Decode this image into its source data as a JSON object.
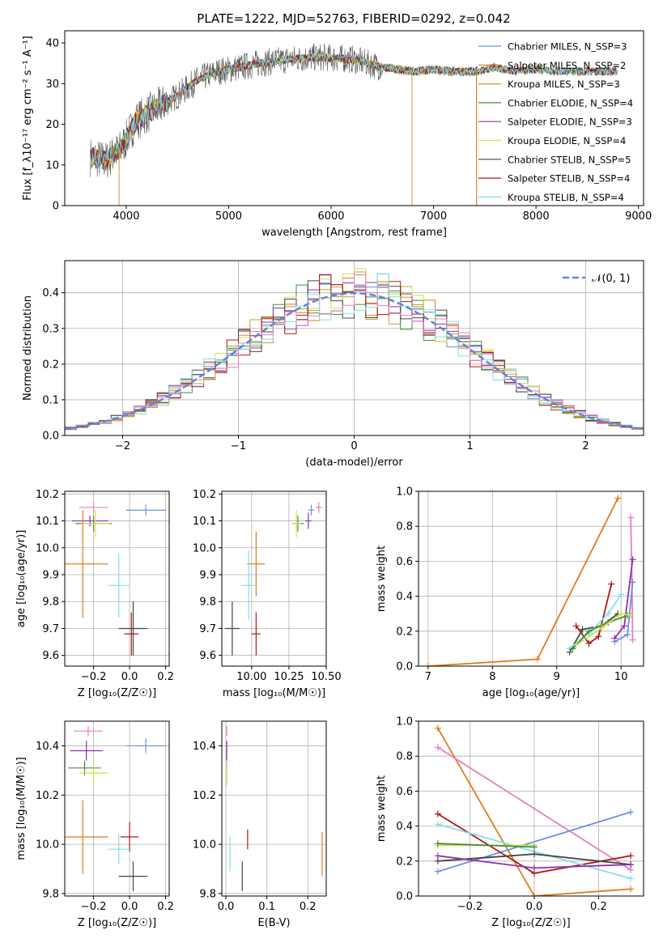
{
  "chart_data": [
    {
      "type": "line",
      "title": "PLATE=1222, MJD=52763, FIBERID=0292, z=0.042",
      "xlabel": "wavelength [Angstrom, rest frame]",
      "ylabel": "Flux [f_λ10⁻¹⁷ erg cm⁻² s⁻¹ A⁻¹]",
      "xlim": [
        3400,
        9050
      ],
      "ylim": [
        0,
        43
      ],
      "xticks": [
        "4000",
        "5000",
        "6000",
        "7000",
        "8000",
        "9000"
      ],
      "yticks": [
        "0",
        "10",
        "20",
        "30",
        "40"
      ],
      "legend_position": "upper right",
      "spectrum_trend": {
        "wavelength": [
          3650,
          3800,
          3950,
          4100,
          4300,
          4500,
          4700,
          4900,
          5100,
          5300,
          5600,
          5900,
          6200,
          6500,
          6800,
          7000,
          7200,
          7400,
          7600,
          7800,
          8000,
          8200,
          8400,
          8600,
          8800
        ],
        "flux": [
          12,
          11,
          14,
          21,
          24,
          27,
          31,
          33,
          34,
          35,
          36,
          36.5,
          36,
          34,
          33,
          33.5,
          33,
          33,
          34,
          33,
          33.5,
          33,
          33,
          33,
          33
        ]
      },
      "series": [
        {
          "name": "Chabrier MILES, N_SSP=3",
          "color": "#6b8fe0"
        },
        {
          "name": "Salpeter MILES, N_SSP=2",
          "color": "#e07b1a"
        },
        {
          "name": "Kroupa MILES, N_SSP=3",
          "color": "#c89b2e"
        },
        {
          "name": "Chabrier ELODIE, N_SSP=4",
          "color": "#3f8f3f"
        },
        {
          "name": "Salpeter ELODIE, N_SSP=3",
          "color": "#8f2fb0"
        },
        {
          "name": "Kroupa ELODIE, N_SSP=4",
          "color": "#d4e04a"
        },
        {
          "name": "Chabrier STELIB, N_SSP=5",
          "color": "#454545"
        },
        {
          "name": "Salpeter STELIB, N_SSP=4",
          "color": "#b01818"
        },
        {
          "name": "Kroupa STELIB, N_SSP=4",
          "color": "#7fe0e8"
        }
      ]
    },
    {
      "type": "histogram",
      "xlabel": "(data-model)/error",
      "ylabel": "Normed distribution",
      "xlim": [
        -2.5,
        2.5
      ],
      "ylim": [
        0,
        0.49
      ],
      "xticks": [
        "−2",
        "−1",
        "0",
        "1",
        "2"
      ],
      "yticks": [
        "0.0",
        "0.1",
        "0.2",
        "0.3",
        "0.4"
      ],
      "legend_label": "𝒩(0, 1)",
      "bin_edges_step": 0.1,
      "grid": true
    },
    {
      "type": "scatter",
      "xlabel": "Z [log₁₀(Z/Z☉)]",
      "ylabel": "age  [log₁₀(age/yr)]",
      "xlim": [
        -0.36,
        0.22
      ],
      "ylim": [
        9.56,
        10.21
      ],
      "xticks": [
        "−0.2",
        "0.0",
        "0.2"
      ],
      "yticks": [
        "9.6",
        "9.7",
        "9.8",
        "9.9",
        "10.0",
        "10.1",
        "10.2"
      ],
      "points": [
        {
          "x": 0.09,
          "y": 10.14,
          "xerr": 0.11,
          "yerr": 0.02,
          "color": "#6b8fe0"
        },
        {
          "x": -0.2,
          "y": 10.15,
          "xerr": 0.08,
          "yerr": 0.02,
          "color": "#e57fc0"
        },
        {
          "x": -0.22,
          "y": 10.1,
          "xerr": 0.1,
          "yerr": 0.02,
          "color": "#8f2fb0"
        },
        {
          "x": -0.2,
          "y": 10.09,
          "xerr": 0.1,
          "yerr": 0.03,
          "color": "#3f8f3f"
        },
        {
          "x": -0.19,
          "y": 10.09,
          "xerr": 0.08,
          "yerr": 0.05,
          "color": "#d4e04a"
        },
        {
          "x": -0.26,
          "y": 9.94,
          "xerr": 0.14,
          "yerr": 0.2,
          "color": "#e07b1a"
        },
        {
          "x": -0.06,
          "y": 9.86,
          "xerr": 0.06,
          "yerr": 0.12,
          "color": "#7fe0e8"
        },
        {
          "x": 0.02,
          "y": 9.7,
          "xerr": 0.08,
          "yerr": 0.1,
          "color": "#454545"
        },
        {
          "x": 0.01,
          "y": 9.68,
          "xerr": 0.04,
          "yerr": 0.08,
          "color": "#b01818"
        }
      ]
    },
    {
      "type": "scatter",
      "xlabel": "mass [log₁₀(M/M☉)]",
      "xlim": [
        9.8,
        10.5
      ],
      "ylim": [
        9.56,
        10.21
      ],
      "xticks": [
        "10.00",
        "10.25",
        "10.50"
      ],
      "yticks": [
        "9.6",
        "9.7",
        "9.8",
        "9.9",
        "10.0",
        "10.1",
        "10.2"
      ],
      "points": [
        {
          "x": 10.4,
          "y": 10.14,
          "xerr": 0.02,
          "yerr": 0.02,
          "color": "#6b8fe0"
        },
        {
          "x": 10.45,
          "y": 10.15,
          "xerr": 0.02,
          "yerr": 0.02,
          "color": "#e57fc0"
        },
        {
          "x": 10.38,
          "y": 10.1,
          "xerr": 0.02,
          "yerr": 0.03,
          "color": "#8f2fb0"
        },
        {
          "x": 10.31,
          "y": 10.09,
          "xerr": 0.04,
          "yerr": 0.03,
          "color": "#3f8f3f"
        },
        {
          "x": 10.3,
          "y": 10.09,
          "xerr": 0.03,
          "yerr": 0.05,
          "color": "#d4e04a"
        },
        {
          "x": 10.03,
          "y": 9.94,
          "xerr": 0.06,
          "yerr": 0.12,
          "color": "#e07b1a"
        },
        {
          "x": 9.98,
          "y": 9.86,
          "xerr": 0.05,
          "yerr": 0.13,
          "color": "#7fe0e8"
        },
        {
          "x": 9.87,
          "y": 9.7,
          "xerr": 0.05,
          "yerr": 0.1,
          "color": "#454545"
        },
        {
          "x": 10.03,
          "y": 9.68,
          "xerr": 0.03,
          "yerr": 0.08,
          "color": "#b01818"
        }
      ]
    },
    {
      "type": "line",
      "xlabel": "age  [log₁₀(age/yr)]",
      "ylabel": "mass weight",
      "xlim": [
        6.85,
        10.35
      ],
      "ylim": [
        0,
        1.0
      ],
      "xticks": [
        "7",
        "8",
        "9",
        "10"
      ],
      "yticks": [
        "0.0",
        "0.2",
        "0.4",
        "0.6",
        "0.8",
        "1.0"
      ],
      "series": [
        {
          "color": "#e07b1a",
          "x": [
            7.0,
            8.7,
            9.95
          ],
          "y": [
            0.0,
            0.04,
            0.96
          ]
        },
        {
          "color": "#e57fc0",
          "x": [
            10.15,
            10.17,
            10.18
          ],
          "y": [
            0.85,
            0.48,
            0.15
          ]
        },
        {
          "color": "#6b8fe0",
          "x": [
            9.9,
            10.1,
            10.18
          ],
          "y": [
            0.14,
            0.18,
            0.48
          ]
        },
        {
          "color": "#8f2fb0",
          "x": [
            9.9,
            10.05,
            10.18
          ],
          "y": [
            0.16,
            0.23,
            0.61
          ]
        },
        {
          "color": "#b01818",
          "x": [
            9.3,
            9.5,
            9.65,
            9.85
          ],
          "y": [
            0.23,
            0.13,
            0.17,
            0.47
          ]
        },
        {
          "color": "#454545",
          "x": [
            9.2,
            9.4,
            9.7,
            9.95
          ],
          "y": [
            0.08,
            0.21,
            0.23,
            0.3
          ]
        },
        {
          "color": "#7fe0e8",
          "x": [
            9.2,
            9.5,
            9.8,
            10.0
          ],
          "y": [
            0.1,
            0.19,
            0.3,
            0.41
          ]
        },
        {
          "color": "#3f8f3f",
          "x": [
            9.25,
            9.5,
            9.8,
            10.1
          ],
          "y": [
            0.1,
            0.2,
            0.25,
            0.29
          ]
        },
        {
          "color": "#d4e04a",
          "x": [
            9.3,
            9.7,
            10.0,
            10.15
          ],
          "y": [
            0.12,
            0.22,
            0.3,
            0.29
          ]
        }
      ]
    },
    {
      "type": "scatter",
      "xlabel": "Z [log₁₀(Z/Z☉)]",
      "ylabel": "mass [log₁₀(M/M☉)]",
      "xlim": [
        -0.36,
        0.22
      ],
      "ylim": [
        9.79,
        10.5
      ],
      "xticks": [
        "−0.2",
        "0.0",
        "0.2"
      ],
      "yticks": [
        "9.8",
        "10.0",
        "10.2",
        "10.4"
      ],
      "points": [
        {
          "x": -0.23,
          "y": 10.46,
          "xerr": 0.08,
          "yerr": 0.02,
          "color": "#e57fc0"
        },
        {
          "x": 0.09,
          "y": 10.4,
          "xerr": 0.11,
          "yerr": 0.03,
          "color": "#6b8fe0"
        },
        {
          "x": -0.24,
          "y": 10.38,
          "xerr": 0.09,
          "yerr": 0.04,
          "color": "#8f2fb0"
        },
        {
          "x": -0.25,
          "y": 10.31,
          "xerr": 0.09,
          "yerr": 0.03,
          "color": "#3f8f3f"
        },
        {
          "x": -0.2,
          "y": 10.29,
          "xerr": 0.08,
          "yerr": 0.05,
          "color": "#d4e04a"
        },
        {
          "x": -0.26,
          "y": 10.03,
          "xerr": 0.14,
          "yerr": 0.15,
          "color": "#e07b1a"
        },
        {
          "x": 0.0,
          "y": 10.03,
          "xerr": 0.05,
          "yerr": 0.06,
          "color": "#b01818"
        },
        {
          "x": -0.06,
          "y": 9.98,
          "xerr": 0.06,
          "yerr": 0.06,
          "color": "#7fe0e8"
        },
        {
          "x": 0.02,
          "y": 9.87,
          "xerr": 0.08,
          "yerr": 0.06,
          "color": "#454545"
        }
      ]
    },
    {
      "type": "scatter",
      "xlabel": "E(B-V)",
      "xlim": [
        -0.01,
        0.245
      ],
      "ylim": [
        9.79,
        10.5
      ],
      "xticks": [
        "0.0",
        "0.1",
        "0.2"
      ],
      "yticks": [
        "9.8",
        "10.0",
        "10.2",
        "10.4"
      ],
      "points": [
        {
          "x": 0.002,
          "y": 10.46,
          "xerr": 0.0,
          "yerr": 0.02,
          "color": "#e57fc0"
        },
        {
          "x": 0.002,
          "y": 10.38,
          "xerr": 0.0,
          "yerr": 0.04,
          "color": "#8f2fb0"
        },
        {
          "x": 0.002,
          "y": 10.29,
          "xerr": 0.0,
          "yerr": 0.05,
          "color": "#d4e04a"
        },
        {
          "x": 0.01,
          "y": 9.96,
          "xerr": 0.0,
          "yerr": 0.07,
          "color": "#7fe0e8"
        },
        {
          "x": 0.053,
          "y": 10.02,
          "xerr": 0.0,
          "yerr": 0.04,
          "color": "#b01818"
        },
        {
          "x": 0.04,
          "y": 9.87,
          "xerr": 0.0,
          "yerr": 0.06,
          "color": "#454545"
        },
        {
          "x": 0.235,
          "y": 9.96,
          "xerr": 0.0,
          "yerr": 0.09,
          "color": "#e07b1a"
        }
      ]
    },
    {
      "type": "line",
      "xlabel": "Z [log₁₀(Z/Z☉)]",
      "ylabel": "mass weight",
      "xlim": [
        -0.36,
        0.34
      ],
      "ylim": [
        0,
        1.0
      ],
      "xticks": [
        "−0.2",
        "0.0",
        "0.2"
      ],
      "yticks": [
        "0.0",
        "0.2",
        "0.4",
        "0.6",
        "0.8",
        "1.0"
      ],
      "series": [
        {
          "color": "#e07b1a",
          "x": [
            -0.3,
            0.0,
            0.3
          ],
          "y": [
            0.96,
            0.0,
            0.04
          ]
        },
        {
          "color": "#e57fc0",
          "x": [
            -0.3,
            0.3
          ],
          "y": [
            0.85,
            0.15
          ]
        },
        {
          "color": "#6b8fe0",
          "x": [
            -0.3,
            0.3
          ],
          "y": [
            0.14,
            0.48
          ]
        },
        {
          "color": "#b01818",
          "x": [
            -0.3,
            0.0,
            0.3
          ],
          "y": [
            0.47,
            0.13,
            0.23
          ]
        },
        {
          "color": "#7fe0e8",
          "x": [
            -0.3,
            0.3
          ],
          "y": [
            0.41,
            0.1
          ]
        },
        {
          "color": "#d4e04a",
          "x": [
            -0.3,
            0.0
          ],
          "y": [
            0.29,
            0.29
          ]
        },
        {
          "color": "#3f8f3f",
          "x": [
            -0.3,
            0.0
          ],
          "y": [
            0.3,
            0.28
          ]
        },
        {
          "color": "#454545",
          "x": [
            -0.3,
            0.0,
            0.3
          ],
          "y": [
            0.2,
            0.24,
            0.18
          ]
        },
        {
          "color": "#8f2fb0",
          "x": [
            -0.3,
            0.0,
            0.3
          ],
          "y": [
            0.23,
            0.16,
            0.18
          ]
        }
      ]
    }
  ]
}
